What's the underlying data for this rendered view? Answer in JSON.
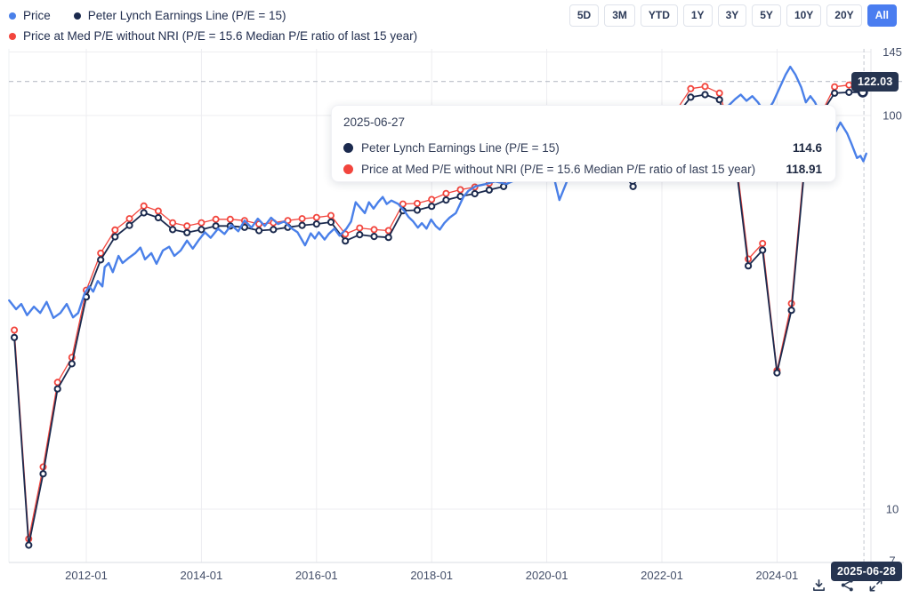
{
  "legend": {
    "series": [
      {
        "label": "Price",
        "color": "#4a80e9"
      },
      {
        "label": "Peter Lynch Earnings Line (P/E = 15)",
        "color": "#1b2a4e"
      },
      {
        "label": "Price at Med P/E without NRI (P/E = 15.6 Median P/E ratio of last 15 year)",
        "color": "#f2453d"
      }
    ]
  },
  "range_buttons": {
    "options": [
      "5D",
      "3M",
      "YTD",
      "1Y",
      "3Y",
      "5Y",
      "10Y",
      "20Y",
      "All"
    ],
    "active": "All",
    "active_color": "#4a7df0"
  },
  "tooltip": {
    "date": "2025-06-27",
    "rows": [
      {
        "label": "Peter Lynch Earnings Line (P/E = 15)",
        "value": "114.6",
        "color": "#1b2a4e"
      },
      {
        "label": "Price at Med P/E without NRI (P/E = 15.6 Median P/E ratio of last 15 year)",
        "value": "118.91",
        "color": "#f2453d"
      }
    ]
  },
  "badges": {
    "price_level": "122.03",
    "crosshair_date": "2025-06-28"
  },
  "toolbar": {
    "icons": [
      "download-icon",
      "share-icon",
      "fullscreen-icon"
    ]
  },
  "chart_data": {
    "type": "line",
    "y_scale": "log",
    "ylim": [
      7,
      145
    ],
    "grid": true,
    "legend_position": "top-left",
    "y_ticks": [
      145,
      100,
      10,
      7
    ],
    "grid_y_values": [
      145,
      100,
      10
    ],
    "x_ticks": [
      "2012-01",
      "2014-01",
      "2016-01",
      "2018-01",
      "2020-01",
      "2022-01",
      "2024-01"
    ],
    "crosshair": {
      "date": "2025-06-28",
      "x_year": 2025.51,
      "hline_value": 122.03
    },
    "series": [
      {
        "name": "Price",
        "color": "#4a80e9",
        "width": 2.4,
        "markers": false,
        "z": 3,
        "points": [
          [
            2010.66,
            33.9
          ],
          [
            2010.78,
            32.2
          ],
          [
            2010.87,
            33.2
          ],
          [
            2010.97,
            31.1
          ],
          [
            2011.09,
            32.7
          ],
          [
            2011.2,
            31.5
          ],
          [
            2011.31,
            33.6
          ],
          [
            2011.43,
            30.6
          ],
          [
            2011.55,
            31.5
          ],
          [
            2011.66,
            33.2
          ],
          [
            2011.77,
            30.7
          ],
          [
            2011.86,
            31.5
          ],
          [
            2011.97,
            35.3
          ],
          [
            2012.05,
            36.8
          ],
          [
            2012.12,
            35.7
          ],
          [
            2012.2,
            38.0
          ],
          [
            2012.28,
            36.8
          ],
          [
            2012.32,
            41.2
          ],
          [
            2012.39,
            42.2
          ],
          [
            2012.46,
            40.0
          ],
          [
            2012.56,
            44.0
          ],
          [
            2012.63,
            42.2
          ],
          [
            2012.74,
            43.5
          ],
          [
            2012.85,
            44.7
          ],
          [
            2012.94,
            46.2
          ],
          [
            2013.02,
            43.1
          ],
          [
            2013.13,
            44.7
          ],
          [
            2013.22,
            42.0
          ],
          [
            2013.33,
            45.4
          ],
          [
            2013.44,
            46.4
          ],
          [
            2013.53,
            44.0
          ],
          [
            2013.64,
            45.4
          ],
          [
            2013.75,
            48.1
          ],
          [
            2013.85,
            45.9
          ],
          [
            2013.96,
            48.4
          ],
          [
            2014.06,
            50.5
          ],
          [
            2014.16,
            48.9
          ],
          [
            2014.29,
            51.6
          ],
          [
            2014.4,
            50.0
          ],
          [
            2014.52,
            52.7
          ],
          [
            2014.64,
            50.8
          ],
          [
            2014.75,
            54.1
          ],
          [
            2014.87,
            51.9
          ],
          [
            2014.98,
            54.7
          ],
          [
            2015.1,
            52.4
          ],
          [
            2015.21,
            55.0
          ],
          [
            2015.33,
            53.0
          ],
          [
            2015.44,
            53.8
          ],
          [
            2015.55,
            51.9
          ],
          [
            2015.67,
            50.5
          ],
          [
            2015.8,
            46.8
          ],
          [
            2015.9,
            50.2
          ],
          [
            2015.97,
            48.7
          ],
          [
            2016.04,
            50.5
          ],
          [
            2016.14,
            48.4
          ],
          [
            2016.21,
            50.0
          ],
          [
            2016.31,
            51.6
          ],
          [
            2016.4,
            49.5
          ],
          [
            2016.52,
            51.6
          ],
          [
            2016.6,
            53.8
          ],
          [
            2016.68,
            60.2
          ],
          [
            2016.76,
            58.3
          ],
          [
            2016.84,
            56.5
          ],
          [
            2016.91,
            60.2
          ],
          [
            2016.99,
            58.0
          ],
          [
            2017.07,
            60.2
          ],
          [
            2017.15,
            62.1
          ],
          [
            2017.22,
            59.6
          ],
          [
            2017.3,
            60.8
          ],
          [
            2017.42,
            59.6
          ],
          [
            2017.53,
            57.1
          ],
          [
            2017.6,
            55.2
          ],
          [
            2017.68,
            53.8
          ],
          [
            2017.76,
            51.9
          ],
          [
            2017.83,
            53.3
          ],
          [
            2017.91,
            51.6
          ],
          [
            2017.99,
            54.4
          ],
          [
            2018.07,
            52.4
          ],
          [
            2018.14,
            51.3
          ],
          [
            2018.22,
            53.3
          ],
          [
            2018.31,
            55.0
          ],
          [
            2018.42,
            56.5
          ],
          [
            2018.55,
            62.1
          ],
          [
            2018.64,
            64.4
          ],
          [
            2018.76,
            66.1
          ],
          [
            2018.91,
            66.8
          ],
          [
            2019.1,
            68.0
          ],
          [
            2019.3,
            67.0
          ],
          [
            2019.45,
            68.5
          ],
          [
            2019.6,
            70.0
          ],
          [
            2019.8,
            75.0
          ],
          [
            2019.95,
            80.0
          ],
          [
            2020.1,
            72.0
          ],
          [
            2020.22,
            61.0
          ],
          [
            2020.35,
            68.0
          ],
          [
            2020.5,
            74.0
          ],
          [
            2020.7,
            80.0
          ],
          [
            2020.9,
            85.0
          ],
          [
            2021.1,
            90.0
          ],
          [
            2021.3,
            95.0
          ],
          [
            2021.5,
            100.0
          ],
          [
            2021.7,
            103.0
          ],
          [
            2021.9,
            100.0
          ],
          [
            2022.1,
            95.0
          ],
          [
            2022.3,
            100.0
          ],
          [
            2022.5,
            103.0
          ],
          [
            2022.7,
            98.0
          ],
          [
            2022.9,
            102.0
          ],
          [
            2023.1,
            104.0
          ],
          [
            2023.27,
            110.0
          ],
          [
            2023.37,
            113.0
          ],
          [
            2023.47,
            109.0
          ],
          [
            2023.57,
            112.0
          ],
          [
            2023.67,
            108.0
          ],
          [
            2023.8,
            101.0
          ],
          [
            2023.93,
            108.0
          ],
          [
            2024.05,
            118.0
          ],
          [
            2024.15,
            127.0
          ],
          [
            2024.23,
            133.0
          ],
          [
            2024.32,
            127.0
          ],
          [
            2024.42,
            118.0
          ],
          [
            2024.5,
            108.0
          ],
          [
            2024.58,
            112.0
          ],
          [
            2024.66,
            108.0
          ],
          [
            2024.76,
            100.0
          ],
          [
            2024.9,
            92.0
          ],
          [
            2025.0,
            90.0
          ],
          [
            2025.1,
            96.0
          ],
          [
            2025.22,
            90.0
          ],
          [
            2025.29,
            85.0
          ],
          [
            2025.39,
            78.0
          ],
          [
            2025.45,
            79.0
          ],
          [
            2025.5,
            76.5
          ],
          [
            2025.55,
            80.0
          ]
        ]
      },
      {
        "name": "Peter Lynch Earnings Line (P/E = 15)",
        "color": "#1b2a4e",
        "width": 1.8,
        "markers": true,
        "marker_stroke": 2,
        "endpoint_marker": true,
        "z": 2,
        "points": [
          [
            2010.75,
            27.3
          ],
          [
            2011.0,
            8.1
          ],
          [
            2011.25,
            12.3
          ],
          [
            2011.5,
            20.2
          ],
          [
            2011.75,
            23.4
          ],
          [
            2012.0,
            34.6
          ],
          [
            2012.25,
            43.0
          ],
          [
            2012.5,
            49.2
          ],
          [
            2012.75,
            52.6
          ],
          [
            2013.0,
            56.6
          ],
          [
            2013.25,
            55.0
          ],
          [
            2013.5,
            51.3
          ],
          [
            2013.75,
            50.4
          ],
          [
            2014.0,
            51.3
          ],
          [
            2014.25,
            52.4
          ],
          [
            2014.5,
            52.4
          ],
          [
            2014.75,
            52.0
          ],
          [
            2015.0,
            51.0
          ],
          [
            2015.25,
            51.3
          ],
          [
            2015.5,
            52.0
          ],
          [
            2015.75,
            52.6
          ],
          [
            2016.0,
            53.0
          ],
          [
            2016.25,
            53.6
          ],
          [
            2016.5,
            48.0
          ],
          [
            2016.75,
            49.8
          ],
          [
            2017.0,
            49.3
          ],
          [
            2017.25,
            49.0
          ],
          [
            2017.5,
            57.3
          ],
          [
            2017.75,
            57.5
          ],
          [
            2018.0,
            58.8
          ],
          [
            2018.25,
            61.0
          ],
          [
            2018.5,
            62.3
          ],
          [
            2018.75,
            63.3
          ],
          [
            2019.0,
            64.7
          ],
          [
            2019.25,
            66.0
          ],
          [
            2019.5,
            70.0
          ],
          [
            2019.75,
            71.5
          ],
          [
            2020.0,
            73.0
          ],
          [
            2020.25,
            71.0
          ],
          [
            2020.5,
            73.0
          ],
          [
            2020.75,
            76.0
          ],
          [
            2021.0,
            79.0
          ],
          [
            2021.25,
            74.0
          ],
          [
            2021.5,
            66.0
          ],
          [
            2021.75,
            78.0
          ],
          [
            2022.0,
            90.0
          ],
          [
            2022.25,
            100.0
          ],
          [
            2022.5,
            111.3
          ],
          [
            2022.75,
            113.0
          ],
          [
            2023.0,
            109.7
          ],
          [
            2023.25,
            83.0
          ],
          [
            2023.5,
            41.5
          ],
          [
            2023.75,
            45.5
          ],
          [
            2024.0,
            22.2
          ],
          [
            2024.25,
            32.0
          ],
          [
            2024.5,
            80.0
          ],
          [
            2024.75,
            100.0
          ],
          [
            2025.0,
            114.0
          ],
          [
            2025.25,
            114.5
          ],
          [
            2025.49,
            114.6
          ]
        ]
      },
      {
        "name": "Price at Med P/E without NRI",
        "color": "#f2453d",
        "width": 1.3,
        "markers": true,
        "marker_stroke": 1.8,
        "z": 1,
        "points": [
          [
            2010.75,
            28.5
          ],
          [
            2011.0,
            8.4
          ],
          [
            2011.25,
            12.8
          ],
          [
            2011.5,
            21.0
          ],
          [
            2011.75,
            24.3
          ],
          [
            2012.0,
            36.0
          ],
          [
            2012.25,
            44.7
          ],
          [
            2012.5,
            51.2
          ],
          [
            2012.75,
            54.7
          ],
          [
            2013.0,
            58.9
          ],
          [
            2013.25,
            57.2
          ],
          [
            2013.5,
            53.4
          ],
          [
            2013.75,
            52.4
          ],
          [
            2014.0,
            53.4
          ],
          [
            2014.25,
            54.5
          ],
          [
            2014.5,
            54.5
          ],
          [
            2014.75,
            54.1
          ],
          [
            2015.0,
            53.0
          ],
          [
            2015.25,
            53.4
          ],
          [
            2015.5,
            54.1
          ],
          [
            2015.75,
            54.7
          ],
          [
            2016.0,
            55.1
          ],
          [
            2016.25,
            55.7
          ],
          [
            2016.5,
            50.0
          ],
          [
            2016.75,
            51.8
          ],
          [
            2017.0,
            51.3
          ],
          [
            2017.25,
            51.0
          ],
          [
            2017.5,
            59.6
          ],
          [
            2017.75,
            59.8
          ],
          [
            2018.0,
            61.2
          ],
          [
            2018.25,
            63.4
          ],
          [
            2018.5,
            64.8
          ],
          [
            2018.75,
            65.8
          ],
          [
            2019.0,
            67.3
          ],
          [
            2019.25,
            68.6
          ],
          [
            2019.5,
            72.0
          ],
          [
            2019.75,
            74.0
          ],
          [
            2020.0,
            76.0
          ],
          [
            2020.25,
            73.0
          ],
          [
            2020.5,
            75.0
          ],
          [
            2020.75,
            78.0
          ],
          [
            2021.0,
            82.0
          ],
          [
            2021.25,
            77.0
          ],
          [
            2021.5,
            70.0
          ],
          [
            2021.75,
            81.0
          ],
          [
            2022.0,
            93.6
          ],
          [
            2022.25,
            103.0
          ],
          [
            2022.5,
            117.0
          ],
          [
            2022.75,
            118.5
          ],
          [
            2023.0,
            114.0
          ],
          [
            2023.25,
            86.3
          ],
          [
            2023.5,
            43.2
          ],
          [
            2023.75,
            47.3
          ],
          [
            2024.0,
            22.5
          ],
          [
            2024.25,
            33.3
          ],
          [
            2024.5,
            83.0
          ],
          [
            2024.75,
            100.0
          ],
          [
            2025.0,
            118.3
          ],
          [
            2025.25,
            119.5
          ],
          [
            2025.51,
            122.03
          ]
        ]
      }
    ]
  }
}
